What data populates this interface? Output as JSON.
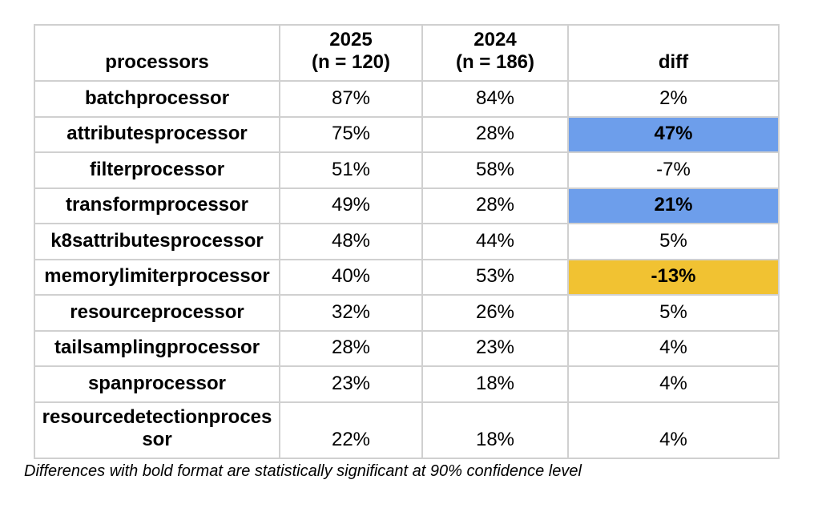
{
  "chart_data": {
    "type": "table",
    "columns": [
      {
        "label": "processors",
        "sublabel": ""
      },
      {
        "label": "2025",
        "sublabel": "(n = 120)"
      },
      {
        "label": "2024",
        "sublabel": "(n = 186)"
      },
      {
        "label": "diff",
        "sublabel": ""
      }
    ],
    "rows": [
      {
        "processor": "batchprocessor",
        "pct_2025": "87%",
        "pct_2024": "84%",
        "diff": "2%",
        "highlight": null,
        "significant": false
      },
      {
        "processor": "attributesprocessor",
        "pct_2025": "75%",
        "pct_2024": "28%",
        "diff": "47%",
        "highlight": "blue",
        "significant": true
      },
      {
        "processor": "filterprocessor",
        "pct_2025": "51%",
        "pct_2024": "58%",
        "diff": "-7%",
        "highlight": null,
        "significant": false
      },
      {
        "processor": "transformprocessor",
        "pct_2025": "49%",
        "pct_2024": "28%",
        "diff": "21%",
        "highlight": "blue",
        "significant": true
      },
      {
        "processor": "k8sattributesprocessor",
        "pct_2025": "48%",
        "pct_2024": "44%",
        "diff": "5%",
        "highlight": null,
        "significant": false
      },
      {
        "processor": "memorylimiterprocessor",
        "pct_2025": "40%",
        "pct_2024": "53%",
        "diff": "-13%",
        "highlight": "gold",
        "significant": true
      },
      {
        "processor": "resourceprocessor",
        "pct_2025": "32%",
        "pct_2024": "26%",
        "diff": "5%",
        "highlight": null,
        "significant": false
      },
      {
        "processor": "tailsamplingprocessor",
        "pct_2025": "28%",
        "pct_2024": "23%",
        "diff": "4%",
        "highlight": null,
        "significant": false
      },
      {
        "processor": "spanprocessor",
        "pct_2025": "23%",
        "pct_2024": "18%",
        "diff": "4%",
        "highlight": null,
        "significant": false
      },
      {
        "processor": "resourcedetectionprocessor",
        "pct_2025": "22%",
        "pct_2024": "18%",
        "diff": "4%",
        "highlight": null,
        "significant": false
      }
    ],
    "footnote": "Differences with bold format are statistically significant at 90% confidence level"
  },
  "colors": {
    "highlight_blue": "#6d9eeb",
    "highlight_gold": "#f1c232",
    "border": "#d0d0d0"
  }
}
